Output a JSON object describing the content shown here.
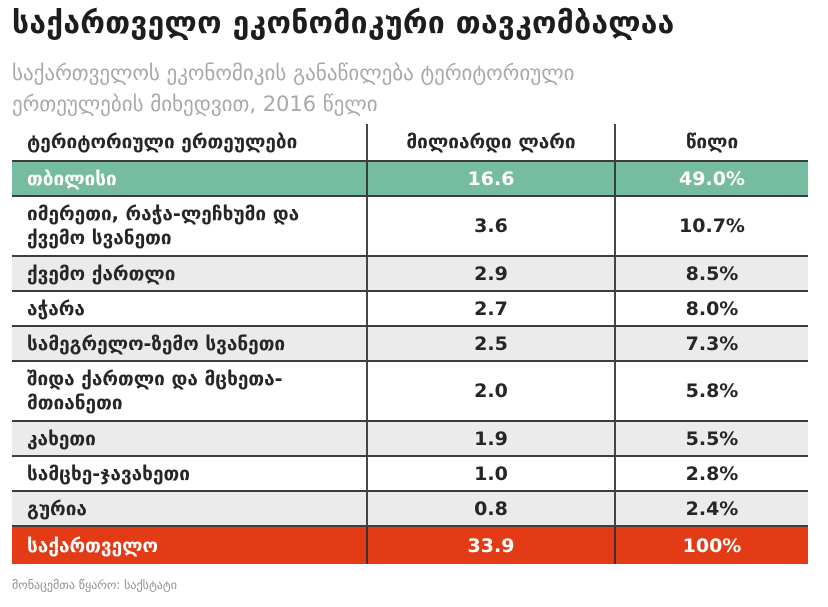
{
  "title": "საქართველო ეკონომიკური თავკომბალაა",
  "subtitle": {
    "line1": "საქართველოს ეკონომიკის განაწილება ტერიტორიული",
    "line2": "ერთეულების მიხედვით, 2016 წელი"
  },
  "table": {
    "headers": [
      "ტერიტორიული ერთეულები",
      "მილიარდი ლარი",
      "წილი"
    ],
    "rows": [
      {
        "name": "თბილისი",
        "value": "16.6",
        "share": "49.0%"
      },
      {
        "name": "იმერეთი, რაჭა-ლეჩხუმი და ქვემო სვანეთი",
        "value": "3.6",
        "share": "10.7%"
      },
      {
        "name": "ქვემო ქართლი",
        "value": "2.9",
        "share": "8.5%"
      },
      {
        "name": "აჭარა",
        "value": "2.7",
        "share": "8.0%"
      },
      {
        "name": "სამეგრელო-ზემო სვანეთი",
        "value": "2.5",
        "share": "7.3%"
      },
      {
        "name": "შიდა ქართლი და მცხეთა-მთიანეთი",
        "value": "2.0",
        "share": "5.8%"
      },
      {
        "name": "კახეთი",
        "value": "1.9",
        "share": "5.5%"
      },
      {
        "name": "სამცხე-ჯავახეთი",
        "value": "1.0",
        "share": "2.8%"
      },
      {
        "name": "გურია",
        "value": "0.8",
        "share": "2.4%"
      },
      {
        "name": "საქართველო",
        "value": "33.9",
        "share": "100%"
      }
    ]
  },
  "source": "მონაცემთა წყარო: საქსტატი",
  "colors": {
    "highlight_green": "#76bca0",
    "total_red": "#e23b16",
    "row_alt_gray": "#ebebeb",
    "grid_line": "#3d3d3d",
    "subtitle_gray": "#a8a8a8"
  },
  "chart_data": {
    "type": "table",
    "title": "საქართველო ეკონომიკური თავკომბალაა",
    "subtitle": "საქართველოს ეკონომიკის განაწილება ტერიტორიული ერთეულების მიხედვით, 2016 წელი",
    "categories": [
      "თბილისი",
      "იმერეთი, რაჭა-ლეჩხუმი და ქვემო სვანეთი",
      "ქვემო ქართლი",
      "აჭარა",
      "სამეგრელო-ზემო სვანეთი",
      "შიდა ქართლი და მცხეთა-მთიანეთი",
      "კახეთი",
      "სამცხე-ჯავახეთი",
      "გურია",
      "საქართველო"
    ],
    "series": [
      {
        "name": "მილიარდი ლარი",
        "values": [
          16.6,
          3.6,
          2.9,
          2.7,
          2.5,
          2.0,
          1.9,
          1.0,
          0.8,
          33.9
        ]
      },
      {
        "name": "წილი (%)",
        "values": [
          49.0,
          10.7,
          8.5,
          8.0,
          7.3,
          5.8,
          5.5,
          2.8,
          2.4,
          100
        ]
      }
    ],
    "source": "მონაცემთა წყარო: საქსტატი"
  }
}
